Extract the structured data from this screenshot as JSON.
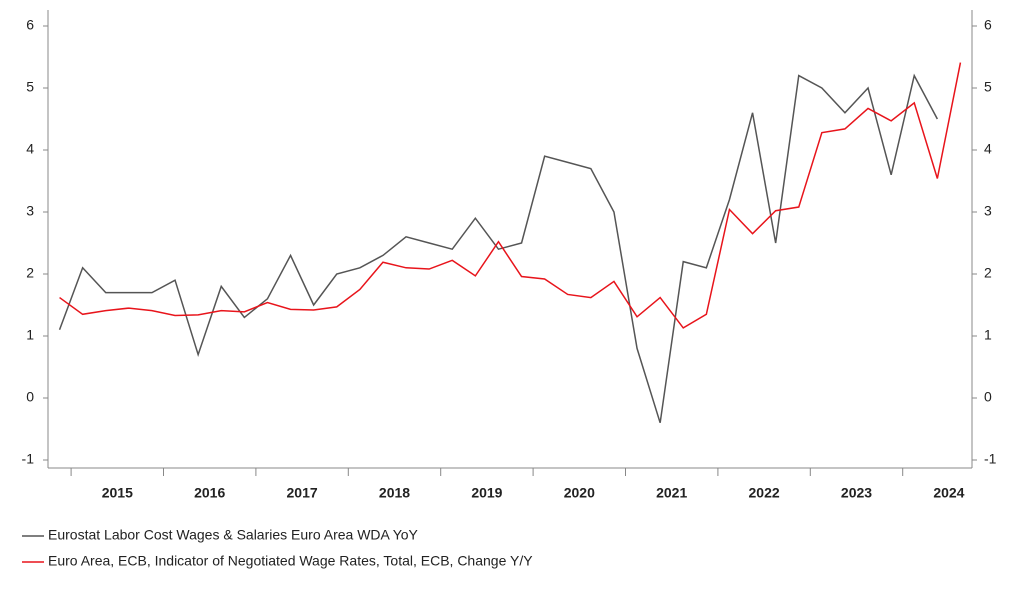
{
  "chart_data": {
    "type": "line",
    "x": [
      2014.875,
      2015.125,
      2015.375,
      2015.625,
      2015.875,
      2016.125,
      2016.375,
      2016.625,
      2016.875,
      2017.125,
      2017.375,
      2017.625,
      2017.875,
      2018.125,
      2018.375,
      2018.625,
      2018.875,
      2019.125,
      2019.375,
      2019.625,
      2019.875,
      2020.125,
      2020.375,
      2020.625,
      2020.875,
      2021.125,
      2021.375,
      2021.625,
      2021.875,
      2022.125,
      2022.375,
      2022.625,
      2022.875,
      2023.125,
      2023.375,
      2023.625,
      2023.875,
      2024.125,
      2024.375,
      2024.625
    ],
    "series": [
      {
        "name": "Eurostat Labor Cost Wages & Salaries Euro Area WDA YoY",
        "color": "#555555",
        "values": [
          1.1,
          2.1,
          1.7,
          1.7,
          1.7,
          1.9,
          0.7,
          1.8,
          1.3,
          1.6,
          2.3,
          1.5,
          2.0,
          2.1,
          2.3,
          2.6,
          2.5,
          2.4,
          2.9,
          2.4,
          2.5,
          3.9,
          3.8,
          3.7,
          3.0,
          0.8,
          -0.4,
          2.2,
          2.1,
          3.2,
          4.6,
          2.5,
          5.2,
          5.0,
          4.6,
          5.0,
          3.6,
          5.2,
          4.5,
          null
        ]
      },
      {
        "name": "Euro Area, ECB, Indicator of Negotiated Wage Rates, Total, ECB, Change Y/Y",
        "color": "#e8141b",
        "values": [
          1.62,
          1.35,
          1.41,
          1.45,
          1.41,
          1.33,
          1.34,
          1.41,
          1.39,
          1.54,
          1.43,
          1.42,
          1.47,
          1.75,
          2.19,
          2.1,
          2.08,
          2.22,
          1.97,
          2.52,
          1.96,
          1.92,
          1.67,
          1.62,
          1.88,
          1.31,
          1.62,
          1.13,
          1.35,
          3.04,
          2.65,
          3.02,
          3.08,
          4.28,
          4.34,
          4.67,
          4.47,
          4.76,
          3.54,
          5.41
        ]
      }
    ],
    "xlim": [
      2014.75,
      2024.75
    ],
    "xticks": [
      {
        "value": 2015,
        "label": "2015"
      },
      {
        "value": 2016,
        "label": "2016"
      },
      {
        "value": 2017,
        "label": "2017"
      },
      {
        "value": 2018,
        "label": "2018"
      },
      {
        "value": 2019,
        "label": "2019"
      },
      {
        "value": 2020,
        "label": "2020"
      },
      {
        "value": 2021,
        "label": "2021"
      },
      {
        "value": 2022,
        "label": "2022"
      },
      {
        "value": 2023,
        "label": "2023"
      },
      {
        "value": 2024,
        "label": "2024"
      }
    ],
    "ylim": [
      -1,
      6
    ],
    "yticks": [
      -1,
      0,
      1,
      2,
      3,
      4,
      5,
      6
    ],
    "y2lim": [
      -1,
      6
    ],
    "y2ticks": [
      -1,
      0,
      1,
      2,
      3,
      4,
      5,
      6
    ],
    "grid": false
  }
}
